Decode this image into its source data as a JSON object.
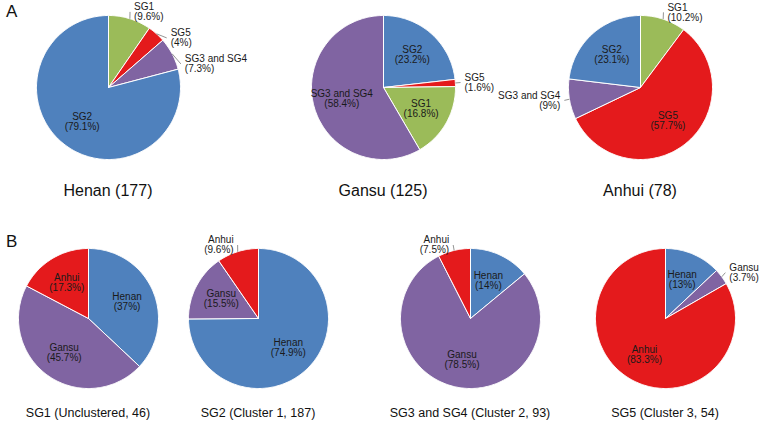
{
  "chart_data": [
    {
      "type": "pie",
      "title": "Henan (177)",
      "annotations": [
        "A"
      ],
      "categories": [
        "SG1",
        "SG5",
        "SG3 and SG4",
        "SG2"
      ],
      "values": [
        9.6,
        4,
        7.3,
        79.1
      ],
      "value_labels": [
        "(9.6%)",
        "(4%)",
        "(7.3%)",
        "(79.1%)"
      ],
      "colors": [
        "#9bbb59",
        "#e41a1c",
        "#8064a2",
        "#4f81bd"
      ],
      "data_labels": true
    },
    {
      "type": "pie",
      "title": "Gansu (125)",
      "categories": [
        "SG2",
        "SG5",
        "SG1",
        "SG3 and SG4"
      ],
      "values": [
        23.2,
        1.6,
        16.8,
        58.4
      ],
      "value_labels": [
        "(23.2%)",
        "(1.6%)",
        "(16.8%)",
        "(58.4%)"
      ],
      "colors": [
        "#4f81bd",
        "#e41a1c",
        "#9bbb59",
        "#8064a2"
      ],
      "data_labels": true
    },
    {
      "type": "pie",
      "title": "Anhui (78)",
      "categories": [
        "SG1",
        "SG5",
        "SG3 and SG4",
        "SG2"
      ],
      "values": [
        10.2,
        57.7,
        9,
        23.1
      ],
      "value_labels": [
        "(10.2%)",
        "(57.7%)",
        "(9%)",
        "(23.1%)"
      ],
      "colors": [
        "#9bbb59",
        "#e41a1c",
        "#8064a2",
        "#4f81bd"
      ],
      "data_labels": true
    },
    {
      "type": "pie",
      "title": "SG1 (Unclustered, 46)",
      "annotations": [
        "B"
      ],
      "categories": [
        "Henan",
        "Gansu",
        "Anhui"
      ],
      "values": [
        37,
        45.7,
        17.3
      ],
      "value_labels": [
        "(37%)",
        "(45.7%)",
        "(17.3%)"
      ],
      "colors": [
        "#4f81bd",
        "#8064a2",
        "#e41a1c"
      ],
      "data_labels": true
    },
    {
      "type": "pie",
      "title": "SG2 (Cluster 1, 187)",
      "categories": [
        "Henan",
        "Gansu",
        "Anhui"
      ],
      "values": [
        74.9,
        15.5,
        9.6
      ],
      "value_labels": [
        "(74.9%)",
        "(15.5%)",
        "(9.6%)"
      ],
      "colors": [
        "#4f81bd",
        "#8064a2",
        "#e41a1c"
      ],
      "data_labels": true
    },
    {
      "type": "pie",
      "title": "SG3 and SG4 (Cluster 2, 93)",
      "categories": [
        "Henan",
        "Gansu",
        "Anhui"
      ],
      "values": [
        14,
        78.5,
        7.5
      ],
      "value_labels": [
        "(14%)",
        "(78.5%)",
        "(7.5%)"
      ],
      "colors": [
        "#4f81bd",
        "#8064a2",
        "#e41a1c"
      ],
      "data_labels": true
    },
    {
      "type": "pie",
      "title": "SG5 (Cluster 3, 54)",
      "categories": [
        "Henan",
        "Gansu",
        "Anhui"
      ],
      "values": [
        13,
        3.7,
        83.3
      ],
      "value_labels": [
        "(13%)",
        "(3.7%)",
        "(83.3%)"
      ],
      "colors": [
        "#4f81bd",
        "#8064a2",
        "#e41a1c"
      ],
      "data_labels": true
    }
  ]
}
